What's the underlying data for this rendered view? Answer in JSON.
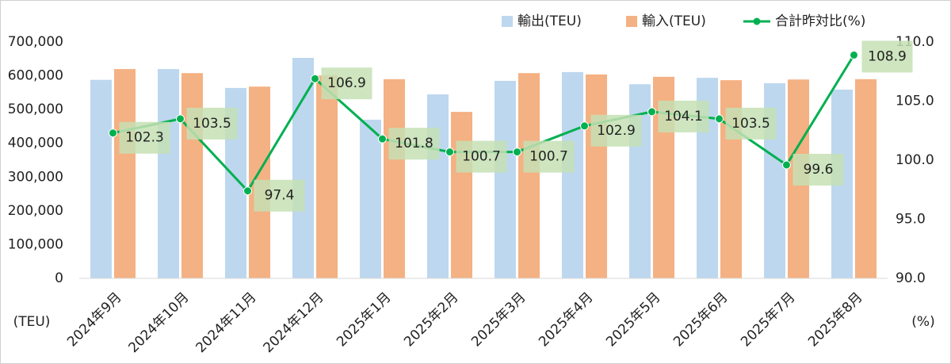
{
  "chart_data": {
    "type": "bar",
    "categories": [
      "2024年9月",
      "2024年10月",
      "2024年11月",
      "2024年12月",
      "2025年1月",
      "2025年2月",
      "2025年3月",
      "2025年4月",
      "2025年5月",
      "2025年6月",
      "2025年7月",
      "2025年8月"
    ],
    "series": [
      {
        "name": "輸出(TEU)",
        "type": "bar",
        "color": "#bdd7ee",
        "values": [
          588000,
          620000,
          564000,
          653000,
          470000,
          545000,
          585000,
          611000,
          575000,
          594000,
          578000,
          559000
        ]
      },
      {
        "name": "輸入(TEU)",
        "type": "bar",
        "color": "#f4b183",
        "values": [
          620000,
          608000,
          568000,
          601000,
          590000,
          493000,
          608000,
          604000,
          597000,
          587000,
          589000,
          590000
        ]
      },
      {
        "name": "合計昨対比(%)",
        "type": "line",
        "axis": "y2",
        "color": "#00b050",
        "values": [
          102.3,
          103.5,
          97.4,
          106.9,
          101.8,
          100.7,
          100.7,
          102.9,
          104.1,
          103.5,
          99.6,
          108.9
        ]
      }
    ],
    "y_unit_label": "(TEU)",
    "y2_unit_label": "(%)",
    "ylim": [
      0,
      700000
    ],
    "yticks": [
      0,
      {
        "value": 100000,
        "label": "100,000"
      },
      {
        "value": 200000,
        "label": "200,000"
      },
      {
        "value": 300000,
        "label": "300,000"
      },
      {
        "value": 400000,
        "label": "400,000"
      },
      {
        "value": 500000,
        "label": "500,000"
      },
      {
        "value": 600000,
        "label": "600,000"
      },
      {
        "value": 700000,
        "label": "700,000"
      }
    ],
    "y2lim": [
      90,
      110
    ],
    "y2ticks": [
      {
        "value": 90,
        "label": "90.0"
      },
      {
        "value": 95,
        "label": "95.0"
      },
      {
        "value": 100,
        "label": "100.0"
      },
      {
        "value": 105,
        "label": "105.0"
      },
      {
        "value": 110,
        "label": "110.0"
      }
    ],
    "legend": "top-right",
    "data_labels": true,
    "grid": false
  }
}
